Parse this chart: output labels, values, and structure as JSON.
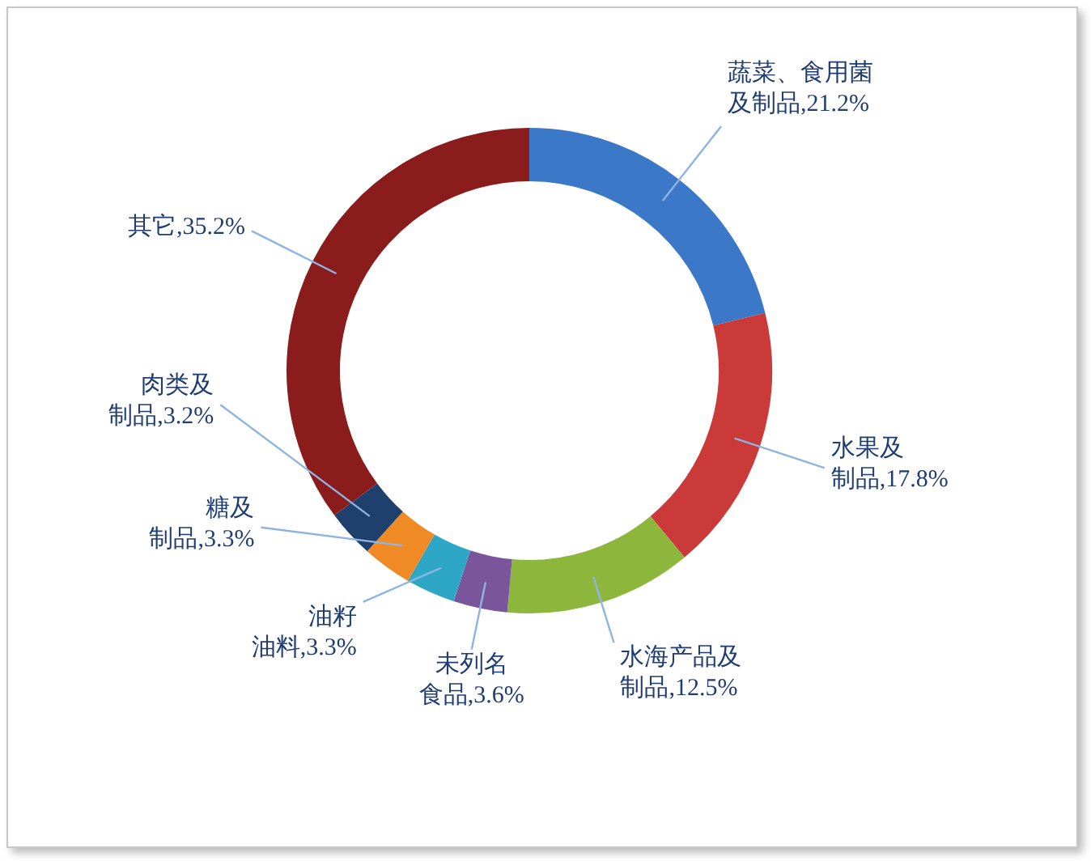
{
  "chart_data": {
    "type": "donut",
    "categories": [
      "蔬菜、食用菌及制品",
      "水果及制品",
      "水海产品及制品",
      "未列名食品",
      "油籽油料",
      "糖及制品",
      "肉类及制品",
      "其它"
    ],
    "values": [
      21.2,
      17.8,
      12.5,
      3.6,
      3.3,
      3.3,
      3.2,
      35.2
    ],
    "value_labels": [
      "21.2%",
      "17.8%",
      "12.5%",
      "3.6%",
      "3.3%",
      "3.3%",
      "3.2%",
      "35.2%"
    ],
    "colors": [
      "#3b78c8",
      "#c93a38",
      "#8cb63c",
      "#7a559b",
      "#2ea7c6",
      "#ef8a25",
      "#1f3f6d",
      "#8a1d1c"
    ],
    "legend": false
  }
}
